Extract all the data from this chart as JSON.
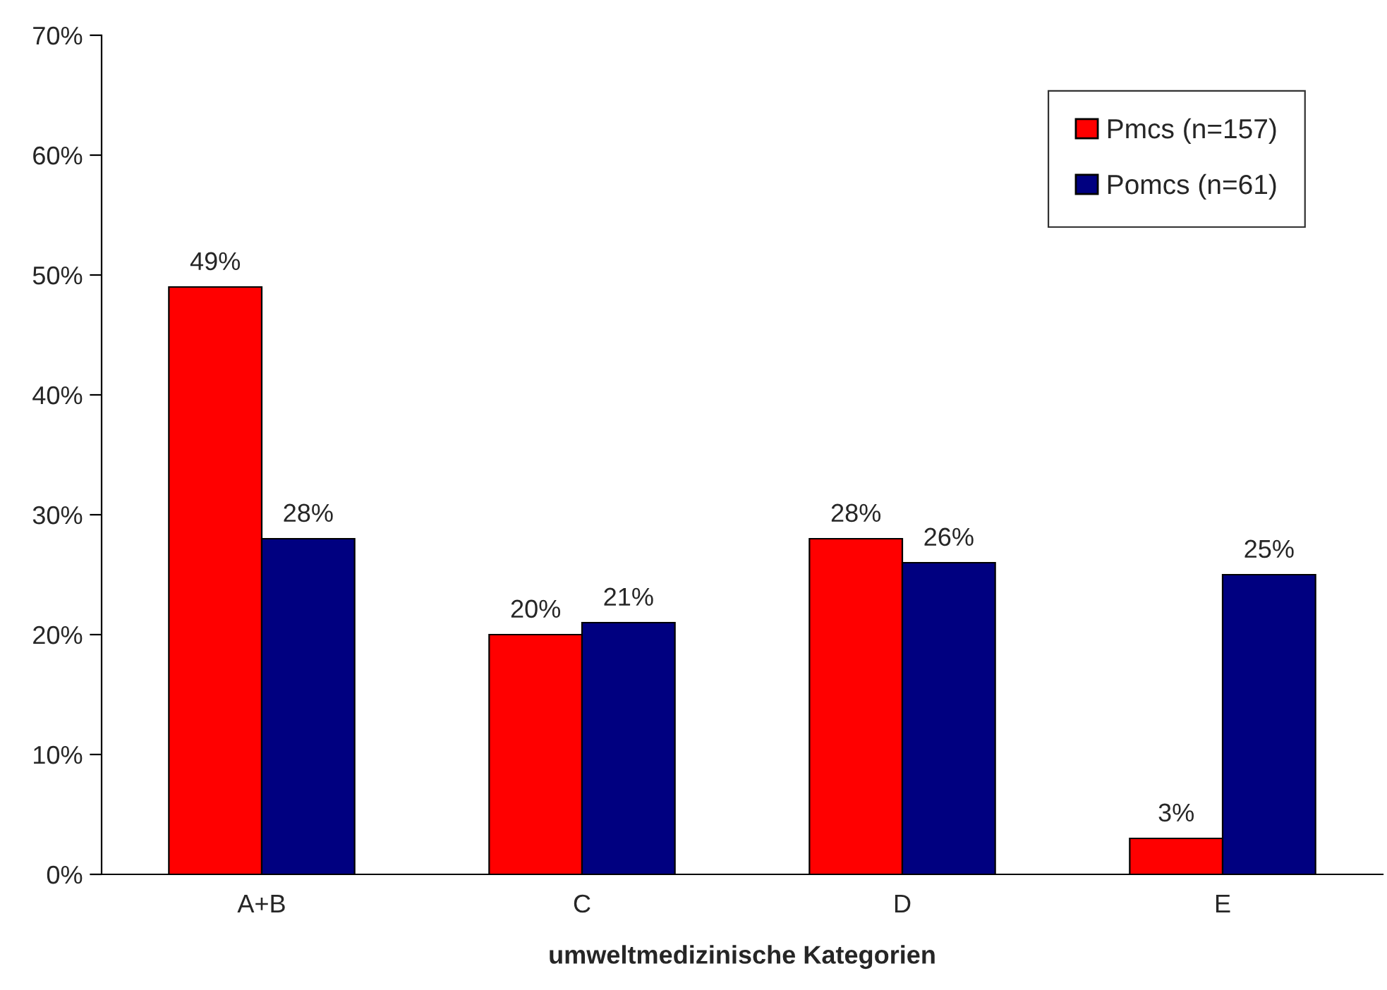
{
  "chart_data": {
    "type": "bar",
    "xlabel": "umweltmedizinische Kategorien",
    "categories": [
      "A+B",
      "C",
      "D",
      "E"
    ],
    "series": [
      {
        "name": "Pmcs (n=157)",
        "color": "#ff0000",
        "values": [
          49,
          20,
          28,
          3
        ],
        "value_labels": [
          "49%",
          "20%",
          "28%",
          "3%"
        ]
      },
      {
        "name": "Pomcs (n=61)",
        "color": "#000080",
        "values": [
          28,
          21,
          26,
          25
        ],
        "value_labels": [
          "28%",
          "21%",
          "26%",
          "25%"
        ]
      }
    ],
    "ylim": [
      0,
      70
    ],
    "yticks": [
      {
        "value": 0,
        "label": "0%"
      },
      {
        "value": 10,
        "label": "10%"
      },
      {
        "value": 20,
        "label": "20%"
      },
      {
        "value": 30,
        "label": "30%"
      },
      {
        "value": 40,
        "label": "40%"
      },
      {
        "value": 50,
        "label": "50%"
      },
      {
        "value": 60,
        "label": "60%"
      },
      {
        "value": 70,
        "label": "70%"
      }
    ],
    "grid": false,
    "legend": "top right"
  }
}
